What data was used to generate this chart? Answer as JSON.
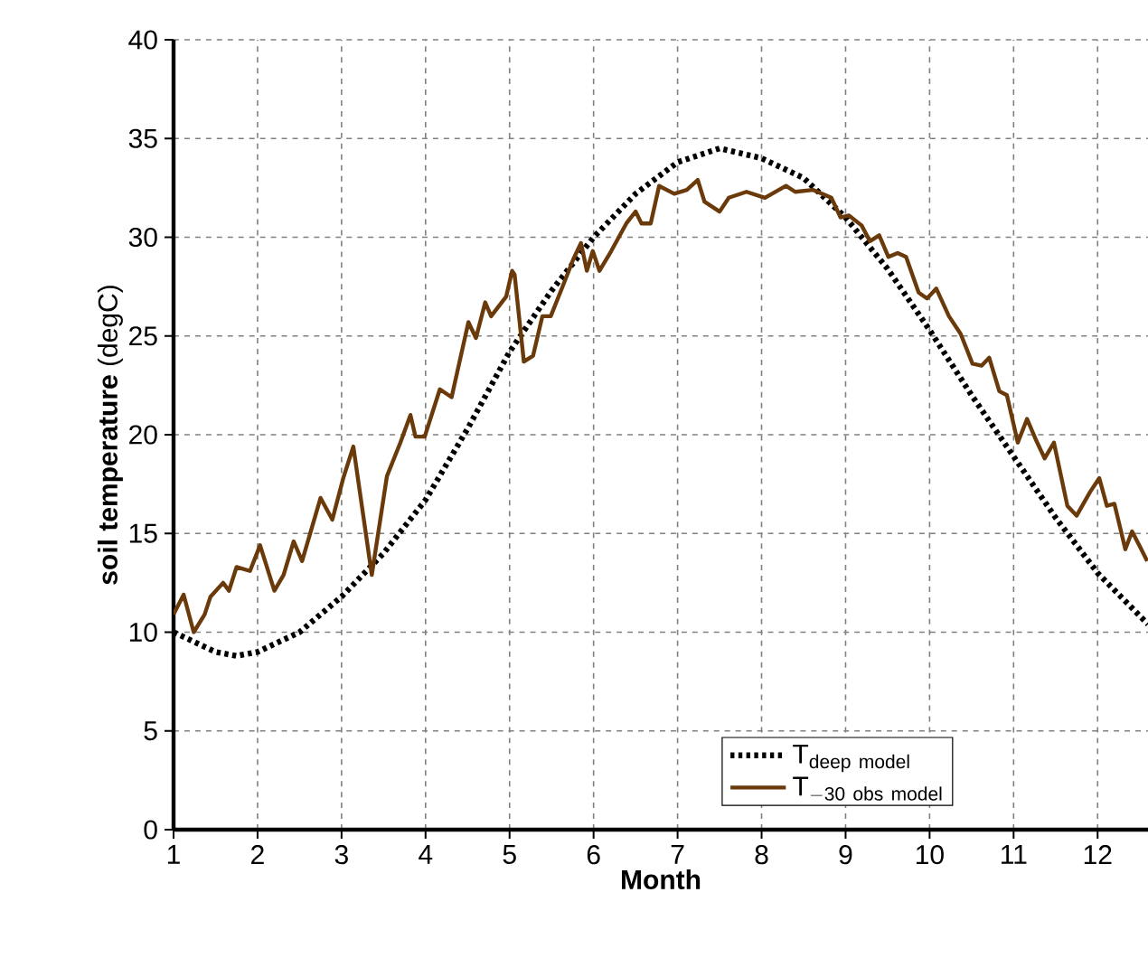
{
  "chart_data": {
    "type": "line",
    "xlabel": "Month",
    "ylabel": "**soil temperature** (degC)",
    "xlim": [
      1,
      12.6
    ],
    "xticks": [
      1,
      2,
      3,
      4,
      5,
      6,
      7,
      8,
      9,
      10,
      11,
      12
    ],
    "ylim": [
      0,
      40
    ],
    "yticks": [
      0,
      5,
      10,
      15,
      20,
      25,
      30,
      35,
      40
    ],
    "grid": true,
    "legend": "bottom right",
    "series": [
      {
        "name": "\\mathrm{T}_{\\mathrm{deep\\ model}}",
        "color": "#000000",
        "line_style": "dotted",
        "x": [
          1,
          1.5,
          1.75,
          2,
          2.5,
          3,
          3.5,
          4,
          4.5,
          5,
          5.5,
          6,
          6.5,
          7,
          7.5,
          8,
          8.5,
          9,
          9.5,
          10,
          10.5,
          11,
          11.5,
          12,
          12.6
        ],
        "values": [
          10.0,
          9.0,
          8.8,
          9.0,
          10.0,
          11.8,
          14.0,
          16.7,
          20.3,
          24.2,
          27.3,
          30.0,
          32.2,
          33.8,
          34.5,
          34.0,
          33.0,
          31.0,
          28.4,
          25.3,
          22.0,
          18.9,
          15.8,
          13.0,
          10.4
        ]
      },
      {
        "name": "\\mathrm{T}_{\\mathrm{-30\\ obs\\ model}}",
        "color": "#6b3a0a",
        "line_style": "solid",
        "x": [
          1.0,
          1.12,
          1.24,
          1.37,
          1.44,
          1.59,
          1.66,
          1.75,
          1.91,
          2.03,
          2.2,
          2.31,
          2.43,
          2.53,
          2.75,
          2.89,
          3.02,
          3.14,
          3.36,
          3.54,
          3.7,
          3.82,
          3.88,
          3.99,
          4.17,
          4.31,
          4.51,
          4.6,
          4.71,
          4.78,
          4.96,
          5.03,
          5.06,
          5.17,
          5.28,
          5.39,
          5.49,
          5.64,
          5.76,
          5.85,
          5.92,
          5.99,
          6.07,
          6.21,
          6.39,
          6.5,
          6.57,
          6.68,
          6.78,
          6.96,
          7.11,
          7.24,
          7.32,
          7.5,
          7.61,
          7.82,
          8.04,
          8.29,
          8.4,
          8.61,
          8.83,
          8.94,
          9.04,
          9.19,
          9.29,
          9.4,
          9.51,
          9.62,
          9.72,
          9.87,
          9.97,
          10.08,
          10.23,
          10.37,
          10.51,
          10.62,
          10.71,
          10.83,
          10.92,
          11.05,
          11.16,
          11.27,
          11.37,
          11.48,
          11.64,
          11.75,
          11.91,
          12.02,
          12.11,
          12.2,
          12.33,
          12.41,
          12.52,
          12.59
        ],
        "values": [
          10.9,
          11.9,
          10.0,
          10.9,
          11.8,
          12.5,
          12.1,
          13.3,
          13.1,
          14.4,
          12.1,
          12.9,
          14.6,
          13.6,
          16.8,
          15.7,
          17.8,
          19.4,
          12.9,
          17.9,
          19.6,
          21.0,
          19.9,
          19.9,
          22.3,
          21.9,
          25.7,
          24.9,
          26.7,
          26.0,
          27.0,
          28.3,
          28.1,
          23.7,
          24.0,
          26.0,
          26.0,
          27.6,
          28.9,
          29.7,
          28.3,
          29.3,
          28.3,
          29.3,
          30.7,
          31.3,
          30.7,
          30.7,
          32.6,
          32.2,
          32.4,
          32.9,
          31.8,
          31.3,
          32.0,
          32.3,
          32.0,
          32.6,
          32.3,
          32.4,
          32.0,
          31.0,
          31.1,
          30.6,
          29.8,
          30.1,
          29.0,
          29.2,
          29.0,
          27.2,
          26.9,
          27.4,
          26.0,
          25.1,
          23.6,
          23.5,
          23.9,
          22.2,
          22.0,
          19.6,
          20.8,
          19.7,
          18.8,
          19.6,
          16.4,
          15.9,
          17.1,
          17.8,
          16.4,
          16.5,
          14.2,
          15.1,
          14.2,
          13.6
        ]
      }
    ]
  }
}
